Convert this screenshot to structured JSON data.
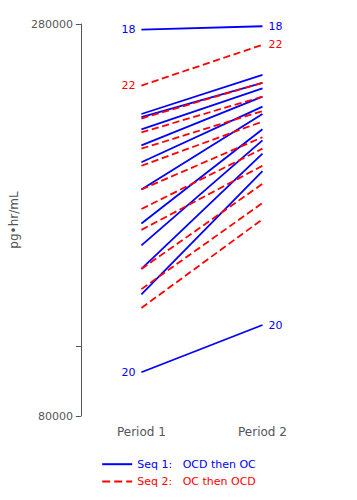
{
  "chart_data": {
    "type": "line",
    "ylabel": "pg•hr/mL",
    "categories": [
      "Period 1",
      "Period 2"
    ],
    "log": "y",
    "ylim": [
      80000,
      280000
    ],
    "yticks": [
      80000,
      280000
    ],
    "grid": false,
    "legend": "bottom",
    "series": [
      {
        "name": "Seq 1:   OCD then OC",
        "color": "#0000FF",
        "line_style": "solid",
        "lines": [
          {
            "label": "18",
            "values": [
              275000,
              278000
            ]
          },
          {
            "values": [
              210000,
              238000
            ]
          },
          {
            "values": [
              208000,
              232000
            ]
          },
          {
            "values": [
              200000,
              228000
            ]
          },
          {
            "values": [
              190000,
              222000
            ]
          },
          {
            "values": [
              180000,
              215000
            ]
          },
          {
            "values": [
              165000,
              210000
            ]
          },
          {
            "values": [
              148000,
              200000
            ]
          },
          {
            "values": [
              138000,
              193000
            ]
          },
          {
            "values": [
              128000,
              185000
            ]
          },
          {
            "values": [
              118000,
              175000
            ]
          },
          {
            "label": "20",
            "values": [
              92000,
              107000
            ]
          }
        ]
      },
      {
        "name": "Seq 2:   OC then OCD",
        "color": "#FF0000",
        "line_style": "dashed",
        "lines": [
          {
            "label": "22",
            "values": [
              230000,
              262000
            ]
          },
          {
            "values": [
              207000,
              232000
            ]
          },
          {
            "values": [
              198000,
              222000
            ]
          },
          {
            "values": [
              188000,
              212000
            ]
          },
          {
            "values": [
              178000,
              205000
            ]
          },
          {
            "values": [
              165000,
              195000
            ]
          },
          {
            "values": [
              155000,
              188000
            ]
          },
          {
            "values": [
              145000,
              178000
            ]
          },
          {
            "values": [
              128000,
              168000
            ]
          },
          {
            "values": [
              120000,
              158000
            ]
          },
          {
            "values": [
              113000,
              150000
            ]
          }
        ]
      }
    ]
  }
}
